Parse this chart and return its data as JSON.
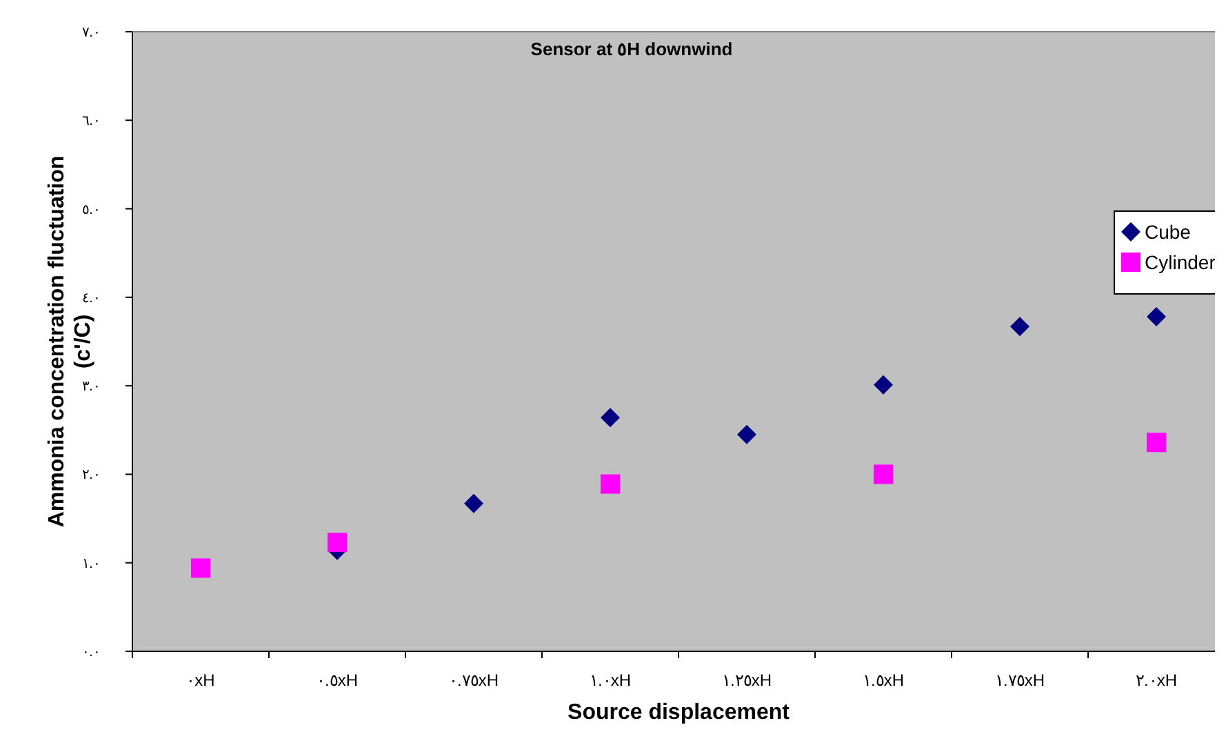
{
  "chart_data": {
    "type": "scatter",
    "title": "Sensor at ٥H downwind",
    "xlabel": "Source displacement",
    "ylabel": "Ammonia concentration fluctuation (c'/C)",
    "categories": [
      "٠xH",
      "٠.٥xH",
      "٠.٧٥xH",
      "١.٠xH",
      "١.٢٥xH",
      "١.٥xH",
      "١.٧٥xH",
      "٢.٠xH"
    ],
    "series": [
      {
        "name": "Cube",
        "color": "#000080",
        "marker": "diamond",
        "values": [
          null,
          1.14,
          1.67,
          2.64,
          2.45,
          3.01,
          3.67,
          3.78
        ]
      },
      {
        "name": "Cylinder",
        "color": "#ff00ff",
        "marker": "square",
        "values": [
          0.94,
          1.23,
          null,
          1.89,
          null,
          2.0,
          null,
          2.36
        ]
      }
    ],
    "ylim": [
      0,
      7
    ],
    "yticks": [
      {
        "value": 0,
        "label": "٠.٠"
      },
      {
        "value": 1,
        "label": "١.٠"
      },
      {
        "value": 2,
        "label": "٢.٠"
      },
      {
        "value": 3,
        "label": "٣.٠"
      },
      {
        "value": 4,
        "label": "٤.٠"
      },
      {
        "value": 5,
        "label": "٥.٠"
      },
      {
        "value": 6,
        "label": "٦.٠"
      },
      {
        "value": 7,
        "label": "٧.٠"
      }
    ],
    "grid": false,
    "legend": "right"
  }
}
